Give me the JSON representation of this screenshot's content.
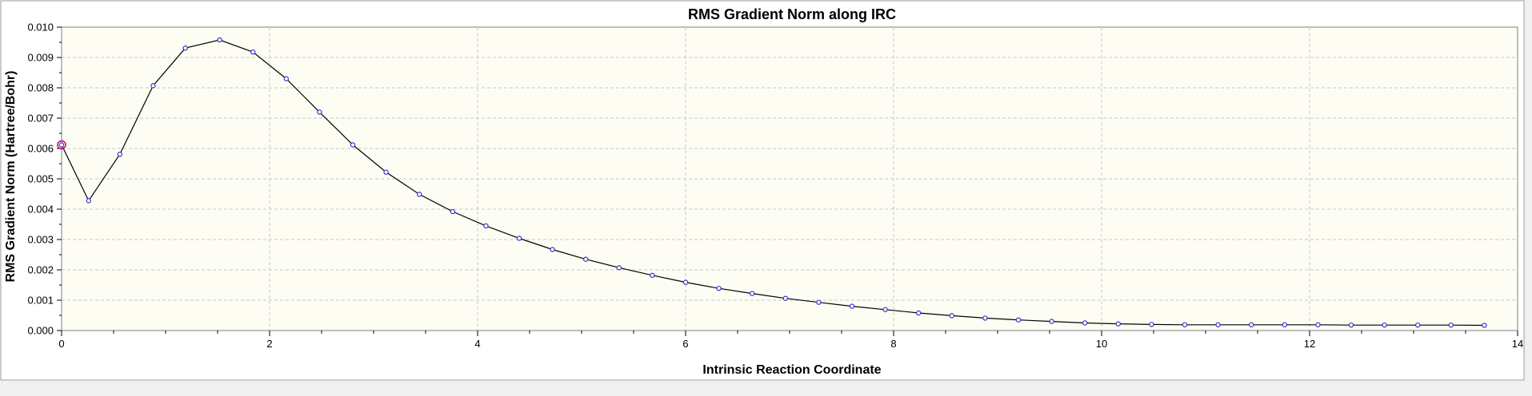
{
  "chart_data": {
    "type": "line",
    "title": "RMS Gradient Norm along IRC",
    "xlabel": "Intrinsic Reaction Coordinate",
    "ylabel": "RMS Gradient Norm (Hartree/Bohr)",
    "xlim": [
      0,
      14
    ],
    "ylim": [
      0,
      0.01
    ],
    "xticks": [
      0,
      2,
      4,
      6,
      8,
      10,
      12,
      14
    ],
    "yticks": [
      0.0,
      0.001,
      0.002,
      0.003,
      0.004,
      0.005,
      0.006,
      0.007,
      0.008,
      0.009,
      0.01
    ],
    "xtick_labels": [
      "0",
      "2",
      "4",
      "6",
      "8",
      "10",
      "12",
      "14"
    ],
    "ytick_labels": [
      "0.000",
      "0.001",
      "0.002",
      "0.003",
      "0.004",
      "0.005",
      "0.006",
      "0.007",
      "0.008",
      "0.009",
      "0.010"
    ],
    "grid": true,
    "colors": {
      "plot_background": "#fdfdf3",
      "line": "#000000",
      "marker": "#3333cc",
      "highlight": "#cc0066"
    },
    "series": [
      {
        "x": [
          0.0,
          0.26,
          0.56,
          0.88,
          1.19,
          1.52,
          1.84,
          2.16,
          2.48,
          2.8,
          3.12,
          3.44,
          3.76,
          4.08,
          4.4,
          4.72,
          5.04,
          5.36,
          5.68,
          6.0,
          6.32,
          6.64,
          6.96,
          7.28,
          7.6,
          7.92,
          8.24,
          8.56,
          8.88,
          9.2,
          9.52,
          9.84,
          10.16,
          10.48,
          10.8,
          11.12,
          11.44,
          11.76,
          12.08,
          12.4,
          12.72,
          13.04,
          13.36,
          13.68
        ],
        "y": [
          0.00612,
          0.00428,
          0.00581,
          0.00807,
          0.00931,
          0.00958,
          0.00918,
          0.0083,
          0.0072,
          0.00612,
          0.00522,
          0.00449,
          0.00392,
          0.00345,
          0.00304,
          0.00267,
          0.00235,
          0.00207,
          0.00182,
          0.00159,
          0.00139,
          0.00122,
          0.00106,
          0.00093,
          0.0008,
          0.00069,
          0.00058,
          0.00049,
          0.00041,
          0.00035,
          0.0003,
          0.00025,
          0.00022,
          0.0002,
          0.00019,
          0.00019,
          0.00019,
          0.00019,
          0.00019,
          0.00018,
          0.00018,
          0.00018,
          0.00018,
          0.00017
        ]
      }
    ],
    "highlighted_point_index": 0
  }
}
